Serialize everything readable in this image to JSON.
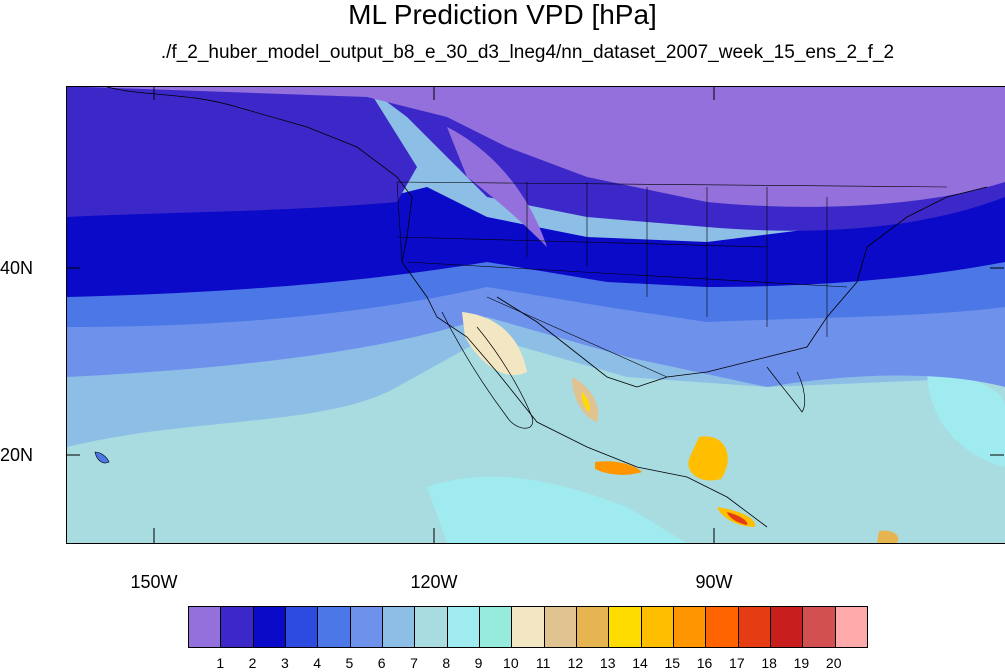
{
  "title": "ML Prediction VPD [hPa]",
  "subtitle": "./f_2_huber_model_output_b8_e_30_d3_lneg4/nn_dataset_2007_week_15_ens_2_f_2",
  "lat_labels": [
    "40N",
    "20N"
  ],
  "lon_labels": [
    "150W",
    "120W",
    "90W"
  ],
  "colorbar": {
    "colors": [
      "#9370db",
      "#3c28c8",
      "#0a0ac8",
      "#2d4be1",
      "#4b78e6",
      "#6e91eb",
      "#8cbee6",
      "#a8dce0",
      "#a0ebf0",
      "#96ebdc",
      "#f3e6c3",
      "#e1c391",
      "#e6b450",
      "#ffdc00",
      "#ffbe00",
      "#ff9600",
      "#ff6400",
      "#e63c14",
      "#c81e1e",
      "#d25050",
      "#ffaaaa"
    ],
    "labels": [
      "1",
      "2",
      "3",
      "4",
      "5",
      "6",
      "7",
      "8",
      "9",
      "10",
      "11",
      "12",
      "13",
      "14",
      "15",
      "16",
      "17",
      "18",
      "19",
      "20"
    ]
  }
}
